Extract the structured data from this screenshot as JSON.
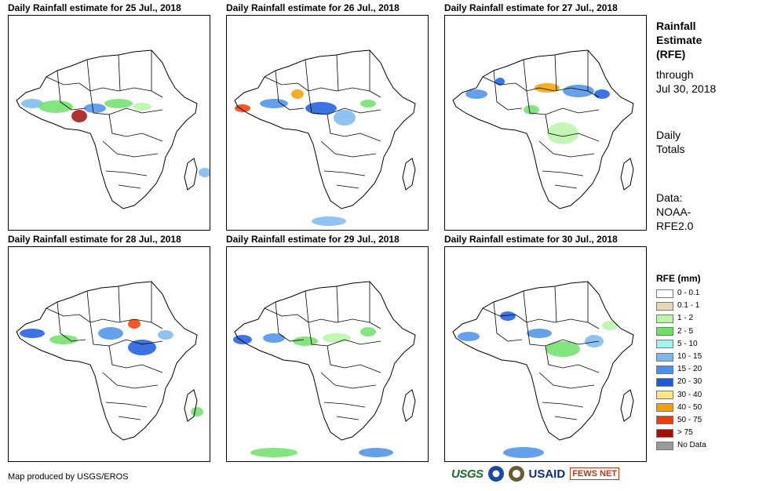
{
  "panels": [
    {
      "title": "Daily Rainfall estimate for 25 Jul., 2018",
      "day": 25
    },
    {
      "title": "Daily Rainfall estimate for 26 Jul., 2018",
      "day": 26
    },
    {
      "title": "Daily Rainfall estimate for 27 Jul., 2018",
      "day": 27
    },
    {
      "title": "Daily Rainfall estimate for 28 Jul., 2018",
      "day": 28
    },
    {
      "title": "Daily Rainfall estimate for 29 Jul., 2018",
      "day": 29
    },
    {
      "title": "Daily Rainfall estimate for 30 Jul., 2018",
      "day": 30
    }
  ],
  "sidebar": {
    "title_line1": "Rainfall",
    "title_line2": "Estimate",
    "title_line3": "(RFE)",
    "through_line1": "through",
    "through_line2": "Jul 30, 2018",
    "totals_line1": "Daily",
    "totals_line2": "Totals",
    "data_line1": "Data:",
    "data_line2": "NOAA-",
    "data_line3": "RFE2.0"
  },
  "legend": {
    "title": "RFE (mm)",
    "items": [
      {
        "label": "0 - 0.1",
        "color": "#ffffff"
      },
      {
        "label": "0.1 - 1",
        "color": "#e8d7b4"
      },
      {
        "label": "1 - 2",
        "color": "#b8f5a8"
      },
      {
        "label": "2 - 5",
        "color": "#6ee06a"
      },
      {
        "label": "5 - 10",
        "color": "#a8f0f0"
      },
      {
        "label": "10 - 15",
        "color": "#7ab8f0"
      },
      {
        "label": "15 - 20",
        "color": "#4a90e8"
      },
      {
        "label": "20 - 30",
        "color": "#1a5ae0"
      },
      {
        "label": "30 - 40",
        "color": "#ffe680"
      },
      {
        "label": "40 - 50",
        "color": "#f5a000"
      },
      {
        "label": "50 - 75",
        "color": "#f03c00"
      },
      {
        "label": "> 75",
        "color": "#a01010"
      },
      {
        "label": "No Data",
        "color": "#999999"
      }
    ]
  },
  "footer": {
    "credit": "Map produced by USGS/EROS",
    "logos": [
      "USGS",
      "NOAA",
      "DOI",
      "USAID",
      "FEWS NET"
    ]
  }
}
